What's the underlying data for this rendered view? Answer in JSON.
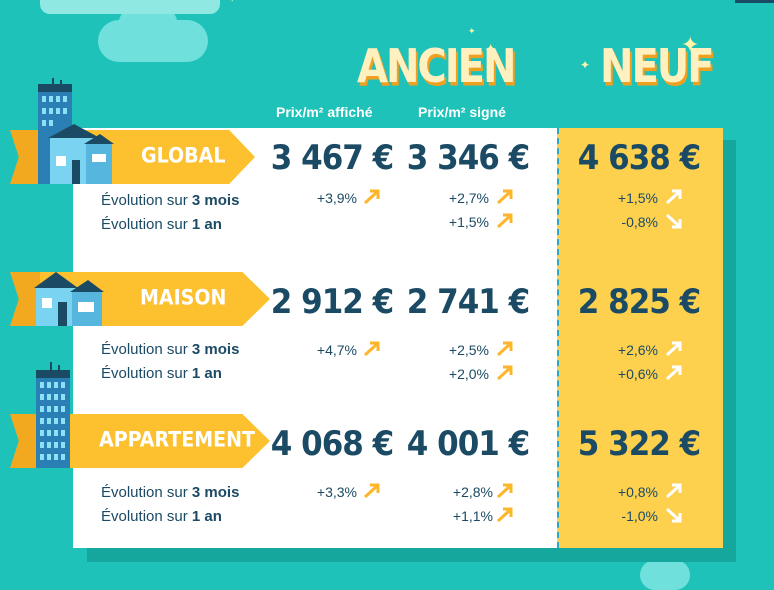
{
  "headers": {
    "ancien": "ANCIEN",
    "neuf": "NEUF",
    "prix_affiche": "Prix/m² affiché",
    "prix_signe": "Prix/m² signé"
  },
  "evolution_labels": {
    "prefix": "Évolution sur ",
    "three_months": "3 mois",
    "one_year": "1 an"
  },
  "rows": [
    {
      "label": "GLOBAL",
      "affiche": "3 467 €",
      "signe": "3 346 €",
      "neuf": "4 638 €",
      "affiche_3m": "+3,9%",
      "signe_3m": "+2,7%",
      "signe_1a": "+1,5%",
      "neuf_3m": "+1,5%",
      "neuf_1a": "-0,8%"
    },
    {
      "label": "MAISON",
      "affiche": "2 912 €",
      "signe": "2 741 €",
      "neuf": "2 825 €",
      "affiche_3m": "+4,7%",
      "signe_3m": "+2,5%",
      "signe_1a": "+2,0%",
      "neuf_3m": "+2,6%",
      "neuf_1a": "+0,6%"
    },
    {
      "label": "APPARTEMENT",
      "affiche": "4 068 €",
      "signe": "4 001 €",
      "neuf": "5 322 €",
      "affiche_3m": "+3,3%",
      "signe_3m": "+2,8%",
      "signe_1a": "+1,1%",
      "neuf_3m": "+0,8%",
      "neuf_1a": "-1,0%"
    }
  ],
  "colors": {
    "background": "#1fc2b8",
    "banner": "#fdc02f",
    "neuf_column": "#fdd14e",
    "text": "#1b4a64"
  }
}
